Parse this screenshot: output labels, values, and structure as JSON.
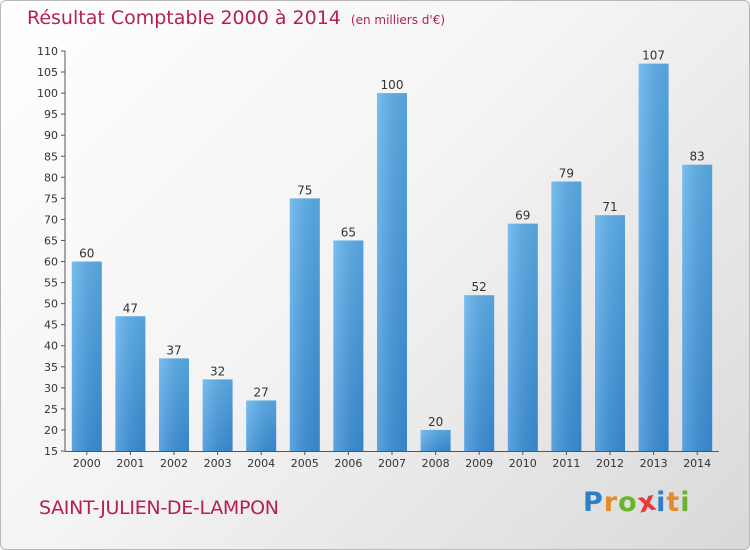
{
  "chart_data": {
    "type": "bar",
    "title": "Résultat Comptable 2000 à 2014",
    "subtitle": "(en milliers d'€)",
    "categories": [
      "2000",
      "2001",
      "2002",
      "2003",
      "2004",
      "2005",
      "2006",
      "2007",
      "2008",
      "2009",
      "2010",
      "2011",
      "2012",
      "2013",
      "2014"
    ],
    "values": [
      60,
      47,
      37,
      32,
      27,
      75,
      65,
      100,
      20,
      52,
      69,
      79,
      71,
      107,
      83
    ],
    "ylim": [
      15,
      110
    ],
    "yticks": [
      15,
      20,
      25,
      30,
      35,
      40,
      45,
      50,
      55,
      60,
      65,
      70,
      75,
      80,
      85,
      90,
      95,
      100,
      105,
      110
    ],
    "grid": false,
    "bar_color": "#3a8fd9"
  },
  "footer": {
    "commune": "SAINT-JULIEN-DE-LAMPON",
    "logo_letters": [
      "P",
      "r",
      "o",
      "x",
      "i",
      "t",
      "i"
    ],
    "logo_colors": [
      "#2f7fc8",
      "#e8892a",
      "#6ab42d",
      "#e83a3a",
      "#2f7fc8",
      "#e8892a",
      "#6ab42d"
    ]
  }
}
